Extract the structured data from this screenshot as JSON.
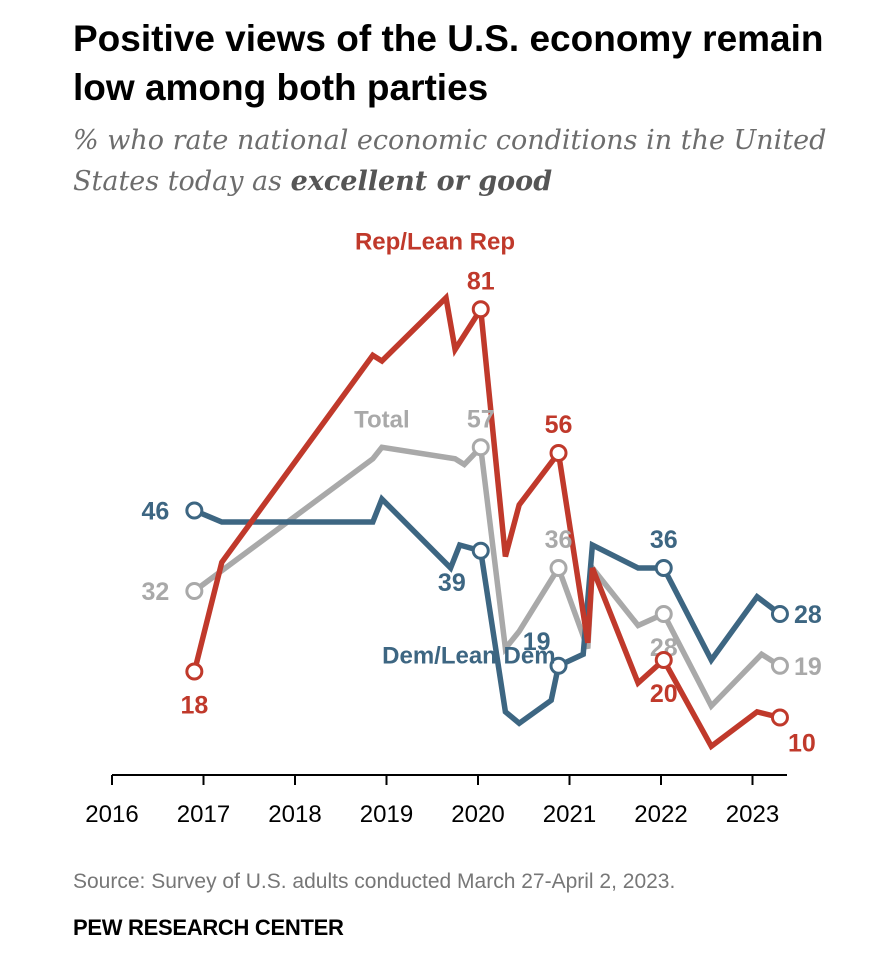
{
  "title": "Positive views of the U.S. economy remain low among both parties",
  "subtitle_pre": "% who rate national economic conditions in the United States today as ",
  "subtitle_bold": "excellent or good",
  "source": "Source: Survey of U.S. adults conducted March 27-April 2, 2023.",
  "brand": "PEW RESEARCH CENTER",
  "chart_data": {
    "type": "line",
    "title": "Positive views of the U.S. economy remain low among both parties",
    "xlabel": "",
    "ylabel": "",
    "xlim": [
      2016,
      2023.35
    ],
    "ylim": [
      0,
      100
    ],
    "x_ticks": [
      "2016",
      "2017",
      "2018",
      "2019",
      "2020",
      "2021",
      "2022",
      "2023"
    ],
    "grid": false,
    "series": [
      {
        "name": "Total",
        "color": "#a9a9a9",
        "points": [
          [
            2016.9,
            32
          ],
          [
            2018.85,
            55
          ],
          [
            2018.95,
            57
          ],
          [
            2019.75,
            55
          ],
          [
            2019.85,
            54
          ],
          [
            2020.03,
            57
          ],
          [
            2020.3,
            22
          ],
          [
            2020.45,
            25
          ],
          [
            2020.88,
            36
          ],
          [
            2021.2,
            22
          ],
          [
            2021.25,
            36
          ],
          [
            2021.75,
            26
          ],
          [
            2022.03,
            28
          ],
          [
            2022.55,
            12
          ],
          [
            2023.1,
            21
          ],
          [
            2023.3,
            19
          ]
        ],
        "labels": [
          {
            "text": "32",
            "x": 2016.9,
            "y": 32,
            "pos": "left"
          },
          {
            "text": "Total",
            "x": 2018.95,
            "y": 57,
            "pos": "above"
          },
          {
            "text": "57",
            "x": 2020.03,
            "y": 57,
            "pos": "above"
          },
          {
            "text": "36",
            "x": 2020.88,
            "y": 36,
            "pos": "above"
          },
          {
            "text": "28",
            "x": 2022.03,
            "y": 28,
            "pos": "below"
          },
          {
            "text": "19",
            "x": 2023.3,
            "y": 19,
            "pos": "right"
          }
        ],
        "markers": [
          [
            2016.9,
            32
          ],
          [
            2020.03,
            57
          ],
          [
            2020.88,
            36
          ],
          [
            2022.03,
            28
          ],
          [
            2023.3,
            19
          ]
        ]
      },
      {
        "name": "Dem/Lean Dem",
        "color": "#3d6682",
        "points": [
          [
            2016.9,
            46
          ],
          [
            2017.2,
            44
          ],
          [
            2018.85,
            44
          ],
          [
            2018.95,
            48
          ],
          [
            2019.7,
            36
          ],
          [
            2019.8,
            40
          ],
          [
            2020.03,
            39
          ],
          [
            2020.3,
            11
          ],
          [
            2020.45,
            9
          ],
          [
            2020.8,
            13
          ],
          [
            2020.88,
            19
          ],
          [
            2021.15,
            21
          ],
          [
            2021.25,
            40
          ],
          [
            2021.75,
            36
          ],
          [
            2022.03,
            36
          ],
          [
            2022.55,
            20
          ],
          [
            2023.05,
            31
          ],
          [
            2023.3,
            28
          ]
        ],
        "labels": [
          {
            "text": "46",
            "x": 2016.9,
            "y": 46,
            "pos": "left"
          },
          {
            "text": "39",
            "x": 2020.03,
            "y": 39,
            "pos": "below-left"
          },
          {
            "text": "19",
            "x": 2020.88,
            "y": 19,
            "pos": "above-left"
          },
          {
            "text": "36",
            "x": 2022.03,
            "y": 36,
            "pos": "above"
          },
          {
            "text": "28",
            "x": 2023.3,
            "y": 28,
            "pos": "right"
          },
          {
            "text": "Dem/Lean Dem",
            "x": 2019.9,
            "y": 21,
            "pos": "center"
          }
        ],
        "markers": [
          [
            2016.9,
            46
          ],
          [
            2020.03,
            39
          ],
          [
            2020.88,
            19
          ],
          [
            2022.03,
            36
          ],
          [
            2023.3,
            28
          ]
        ]
      },
      {
        "name": "Rep/Lean Rep",
        "color": "#c0392b",
        "points": [
          [
            2016.9,
            18
          ],
          [
            2017.2,
            37
          ],
          [
            2018.85,
            73
          ],
          [
            2018.95,
            72
          ],
          [
            2019.65,
            83
          ],
          [
            2019.75,
            74
          ],
          [
            2020.03,
            81
          ],
          [
            2020.3,
            38
          ],
          [
            2020.45,
            47
          ],
          [
            2020.88,
            56
          ],
          [
            2021.2,
            23
          ],
          [
            2021.25,
            36
          ],
          [
            2021.75,
            16
          ],
          [
            2022.03,
            20
          ],
          [
            2022.55,
            5
          ],
          [
            2023.05,
            11
          ],
          [
            2023.3,
            10
          ]
        ],
        "labels": [
          {
            "text": "18",
            "x": 2016.9,
            "y": 18,
            "pos": "below"
          },
          {
            "text": "Rep/Lean Rep",
            "x": 2019.53,
            "y": 93,
            "pos": "center"
          },
          {
            "text": "81",
            "x": 2020.03,
            "y": 81,
            "pos": "above"
          },
          {
            "text": "56",
            "x": 2020.88,
            "y": 56,
            "pos": "above"
          },
          {
            "text": "20",
            "x": 2022.03,
            "y": 20,
            "pos": "below"
          },
          {
            "text": "10",
            "x": 2023.3,
            "y": 10,
            "pos": "below-right"
          }
        ],
        "markers": [
          [
            2016.9,
            18
          ],
          [
            2020.03,
            81
          ],
          [
            2020.88,
            56
          ],
          [
            2022.03,
            20
          ],
          [
            2023.3,
            10
          ]
        ]
      }
    ]
  }
}
